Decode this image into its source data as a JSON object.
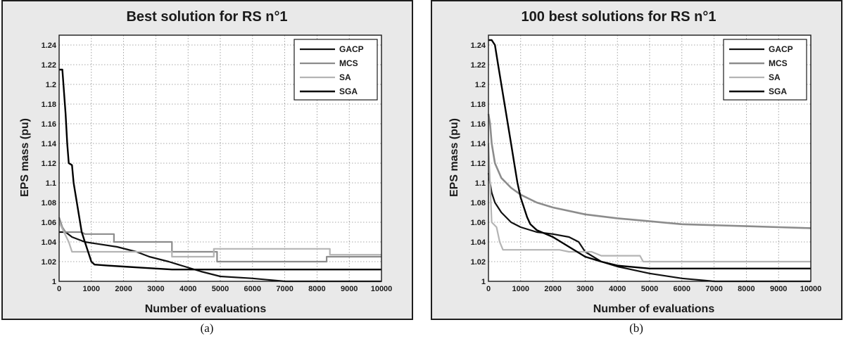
{
  "chart_data": [
    {
      "type": "line",
      "title": "Best solution for RS n°1",
      "xlabel": "Number of evaluations",
      "ylabel": "EPS mass (pu)",
      "xlim": [
        0,
        10000
      ],
      "ylim": [
        1,
        1.25
      ],
      "xticks": [
        "0",
        "1000",
        "2000",
        "3000",
        "4000",
        "5000",
        "6000",
        "7000",
        "8000",
        "9000",
        "10000"
      ],
      "yticks": [
        "1",
        "1.02",
        "1.04",
        "1.06",
        "1.08",
        "1.1",
        "1.12",
        "1.14",
        "1.16",
        "1.18",
        "1.2",
        "1.22",
        "1.24"
      ],
      "grid": true,
      "legend_position": "top-right",
      "caption": "(a)",
      "series": [
        {
          "name": "GACP",
          "color": "#111111",
          "width": 2.2,
          "points": [
            [
              0,
              1.05
            ],
            [
              200,
              1.05
            ],
            [
              400,
              1.045
            ],
            [
              800,
              1.04
            ],
            [
              1200,
              1.038
            ],
            [
              1800,
              1.035
            ],
            [
              2400,
              1.03
            ],
            [
              2800,
              1.025
            ],
            [
              3400,
              1.02
            ],
            [
              3900,
              1.015
            ],
            [
              4400,
              1.01
            ],
            [
              5000,
              1.005
            ],
            [
              6000,
              1.003
            ],
            [
              7000,
              1.0
            ],
            [
              10000,
              1.0
            ]
          ]
        },
        {
          "name": "MCS",
          "color": "#8c8c8c",
          "width": 2.2,
          "points": [
            [
              0,
              1.065
            ],
            [
              100,
              1.055
            ],
            [
              200,
              1.05
            ],
            [
              700,
              1.05
            ],
            [
              800,
              1.048
            ],
            [
              1700,
              1.048
            ],
            [
              1700,
              1.04
            ],
            [
              3500,
              1.04
            ],
            [
              3500,
              1.03
            ],
            [
              4900,
              1.03
            ],
            [
              4900,
              1.02
            ],
            [
              8300,
              1.02
            ],
            [
              8300,
              1.025
            ],
            [
              10000,
              1.025
            ]
          ]
        },
        {
          "name": "SA",
          "color": "#b4b4b4",
          "width": 2.2,
          "points": [
            [
              0,
              1.06
            ],
            [
              150,
              1.05
            ],
            [
              300,
              1.04
            ],
            [
              400,
              1.03
            ],
            [
              3500,
              1.03
            ],
            [
              3500,
              1.025
            ],
            [
              4800,
              1.025
            ],
            [
              4800,
              1.033
            ],
            [
              8400,
              1.033
            ],
            [
              8400,
              1.027
            ],
            [
              10000,
              1.027
            ]
          ]
        },
        {
          "name": "SGA",
          "color": "#000000",
          "width": 2.4,
          "points": [
            [
              0,
              1.215
            ],
            [
              100,
              1.215
            ],
            [
              200,
              1.17
            ],
            [
              250,
              1.14
            ],
            [
              300,
              1.12
            ],
            [
              400,
              1.118
            ],
            [
              450,
              1.1
            ],
            [
              500,
              1.09
            ],
            [
              600,
              1.07
            ],
            [
              700,
              1.05
            ],
            [
              800,
              1.04
            ],
            [
              900,
              1.03
            ],
            [
              1000,
              1.02
            ],
            [
              1100,
              1.017
            ],
            [
              1500,
              1.016
            ],
            [
              2000,
              1.015
            ],
            [
              2500,
              1.014
            ],
            [
              3000,
              1.013
            ],
            [
              3500,
              1.012
            ],
            [
              4000,
              1.012
            ],
            [
              10000,
              1.012
            ]
          ]
        }
      ]
    },
    {
      "type": "line",
      "title": "100 best solutions for RS n°1",
      "xlabel": "Number of evaluations",
      "ylabel": "EPS mass (pu)",
      "xlim": [
        0,
        10000
      ],
      "ylim": [
        1,
        1.25
      ],
      "xticks": [
        "0",
        "1000",
        "2000",
        "3000",
        "4000",
        "5000",
        "6000",
        "7000",
        "8000",
        "9000",
        "10000"
      ],
      "yticks": [
        "1",
        "1.02",
        "1.04",
        "1.06",
        "1.08",
        "1.1",
        "1.12",
        "1.14",
        "1.16",
        "1.18",
        "1.2",
        "1.22",
        "1.24"
      ],
      "grid": true,
      "legend_position": "top-right",
      "caption": "(b)",
      "series": [
        {
          "name": "GACP",
          "color": "#111111",
          "width": 2.2,
          "points": [
            [
              0,
              1.11
            ],
            [
              100,
              1.09
            ],
            [
              200,
              1.08
            ],
            [
              400,
              1.07
            ],
            [
              700,
              1.06
            ],
            [
              1000,
              1.055
            ],
            [
              1500,
              1.05
            ],
            [
              2000,
              1.048
            ],
            [
              2500,
              1.045
            ],
            [
              2800,
              1.04
            ],
            [
              3000,
              1.03
            ],
            [
              3500,
              1.02
            ],
            [
              4000,
              1.015
            ],
            [
              5000,
              1.008
            ],
            [
              6000,
              1.003
            ],
            [
              7000,
              1.0
            ],
            [
              10000,
              1.0
            ]
          ]
        },
        {
          "name": "MCS",
          "color": "#8c8c8c",
          "width": 2.6,
          "points": [
            [
              0,
              1.17
            ],
            [
              50,
              1.16
            ],
            [
              100,
              1.14
            ],
            [
              200,
              1.12
            ],
            [
              400,
              1.105
            ],
            [
              700,
              1.095
            ],
            [
              1000,
              1.088
            ],
            [
              1500,
              1.08
            ],
            [
              2000,
              1.075
            ],
            [
              3000,
              1.068
            ],
            [
              4000,
              1.064
            ],
            [
              5000,
              1.061
            ],
            [
              6000,
              1.058
            ],
            [
              7000,
              1.057
            ],
            [
              8000,
              1.056
            ],
            [
              9000,
              1.055
            ],
            [
              10000,
              1.054
            ]
          ]
        },
        {
          "name": "SA",
          "color": "#b4b4b4",
          "width": 2.2,
          "points": [
            [
              0,
              1.14
            ],
            [
              100,
              1.06
            ],
            [
              250,
              1.055
            ],
            [
              350,
              1.04
            ],
            [
              450,
              1.032
            ],
            [
              2200,
              1.032
            ],
            [
              2500,
              1.03
            ],
            [
              3200,
              1.03
            ],
            [
              3500,
              1.026
            ],
            [
              4700,
              1.026
            ],
            [
              4800,
              1.02
            ],
            [
              10000,
              1.02
            ]
          ]
        },
        {
          "name": "SGA",
          "color": "#000000",
          "width": 2.4,
          "points": [
            [
              0,
              1.245
            ],
            [
              100,
              1.245
            ],
            [
              200,
              1.24
            ],
            [
              300,
              1.22
            ],
            [
              400,
              1.2
            ],
            [
              500,
              1.18
            ],
            [
              600,
              1.16
            ],
            [
              700,
              1.14
            ],
            [
              800,
              1.12
            ],
            [
              900,
              1.1
            ],
            [
              1000,
              1.085
            ],
            [
              1100,
              1.075
            ],
            [
              1200,
              1.065
            ],
            [
              1300,
              1.058
            ],
            [
              1500,
              1.052
            ],
            [
              2000,
              1.045
            ],
            [
              2500,
              1.035
            ],
            [
              3000,
              1.025
            ],
            [
              3500,
              1.02
            ],
            [
              4000,
              1.016
            ],
            [
              5000,
              1.013
            ],
            [
              10000,
              1.013
            ]
          ]
        }
      ]
    }
  ]
}
